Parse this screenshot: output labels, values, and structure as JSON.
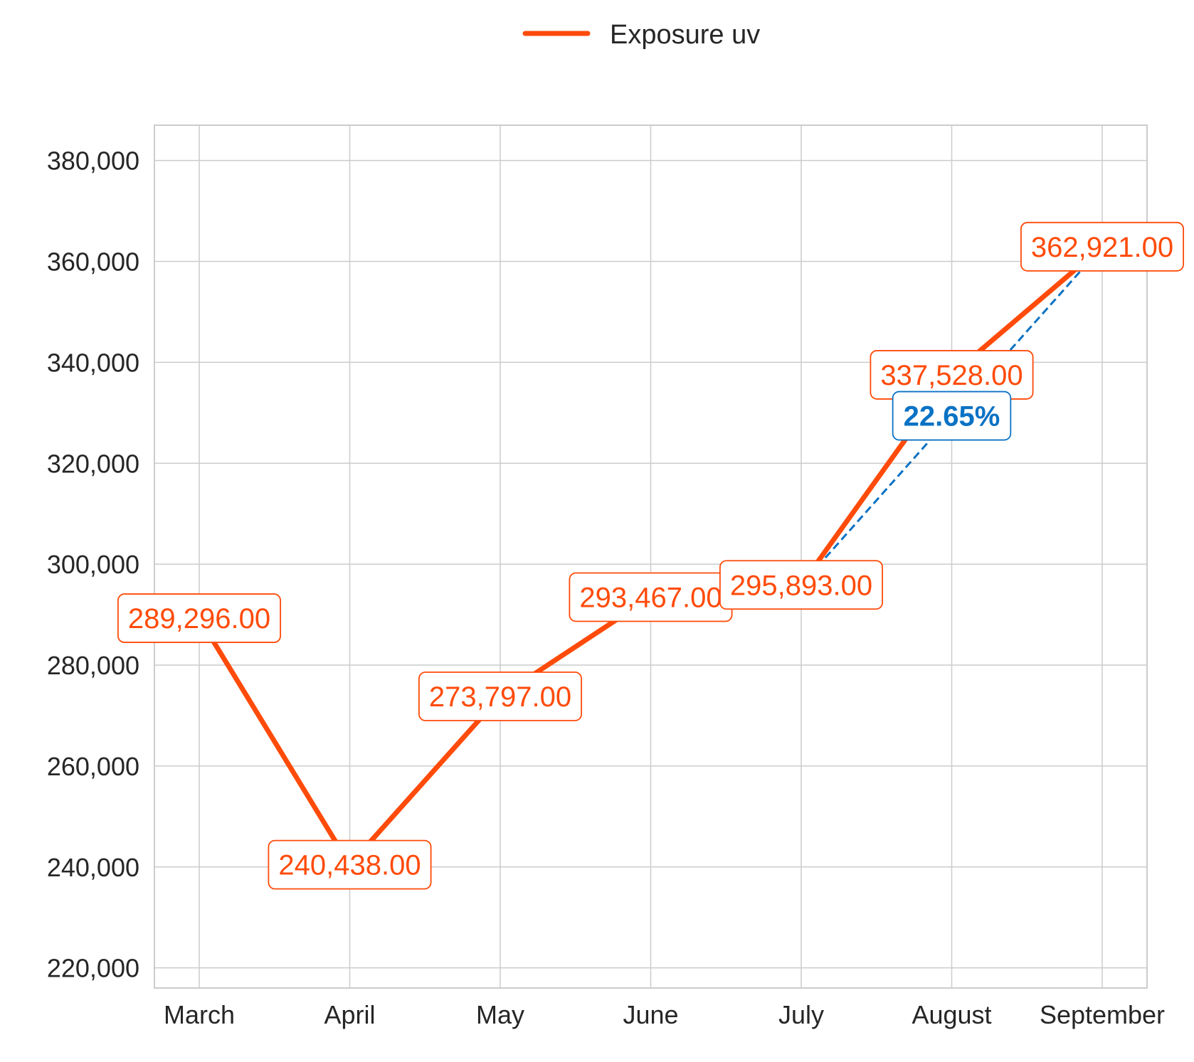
{
  "chart_data": {
    "type": "line",
    "categories": [
      "March",
      "April",
      "May",
      "June",
      "July",
      "August",
      "September"
    ],
    "series": [
      {
        "name": "Exposure uv",
        "values": [
          289296,
          240438,
          273797,
          293467,
          295893,
          337528,
          362921
        ],
        "labels": [
          "289,296.00",
          "240,438.00",
          "273,797.00",
          "293,467.00",
          "295,893.00",
          "337,528.00",
          "362,921.00"
        ]
      }
    ],
    "ylim": [
      216000,
      387000
    ],
    "yticks": [
      220000,
      240000,
      260000,
      280000,
      300000,
      320000,
      340000,
      360000,
      380000
    ],
    "ytick_labels": [
      "220,000",
      "240,000",
      "260,000",
      "280,000",
      "300,000",
      "320,000",
      "340,000",
      "360,000",
      "380,000"
    ],
    "grid": true,
    "legend": "top-center",
    "annotation": {
      "label": "22.65%",
      "from_category": "July",
      "to_category": "September",
      "from_value": 295893,
      "to_value": 362921
    },
    "colors": {
      "series": "#ff4b0a",
      "annotation": "#0a72c4",
      "grid": "#cccccc",
      "text": "#262626"
    }
  }
}
